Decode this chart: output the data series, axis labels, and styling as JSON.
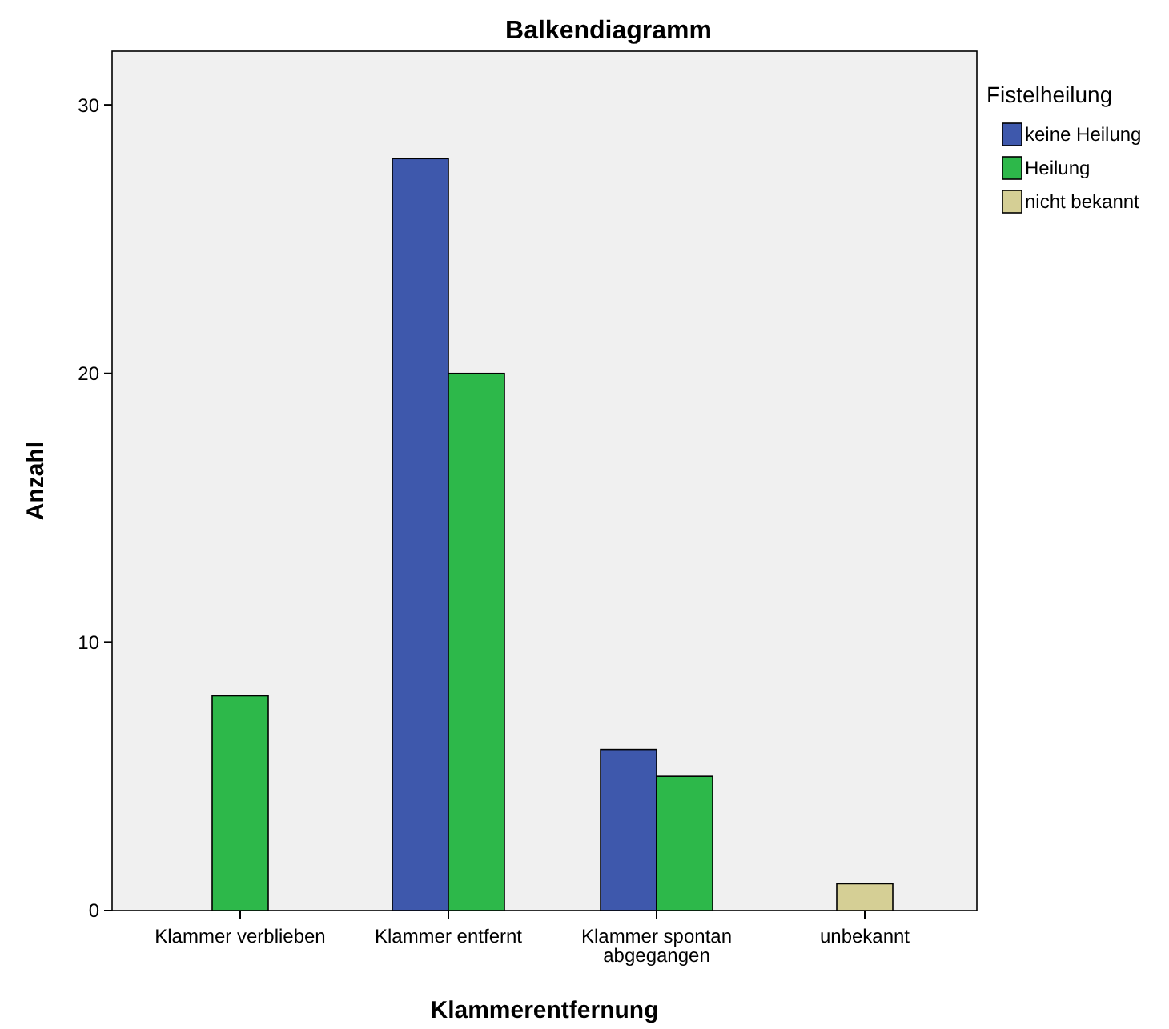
{
  "chart_data": {
    "type": "bar",
    "title": "Balkendiagramm",
    "xlabel": "Klammerentfernung",
    "ylabel": "Anzahl",
    "legend_title": "Fistelheilung",
    "categories": [
      "Klammer verblieben",
      "Klammer entfernt",
      "Klammer spontan abgegangen",
      "unbekannt"
    ],
    "series": [
      {
        "name": "keine Heilung",
        "color": "#3e58ac",
        "values": [
          null,
          28,
          6,
          null
        ]
      },
      {
        "name": "Heilung",
        "color": "#2db84a",
        "values": [
          8,
          20,
          5,
          null
        ]
      },
      {
        "name": "nicht bekannt",
        "color": "#d5cf95",
        "values": [
          null,
          null,
          null,
          1
        ]
      }
    ],
    "ylim": [
      0,
      32
    ],
    "yticks": [
      0,
      10,
      20,
      30
    ],
    "grid": false,
    "legend": "right"
  }
}
